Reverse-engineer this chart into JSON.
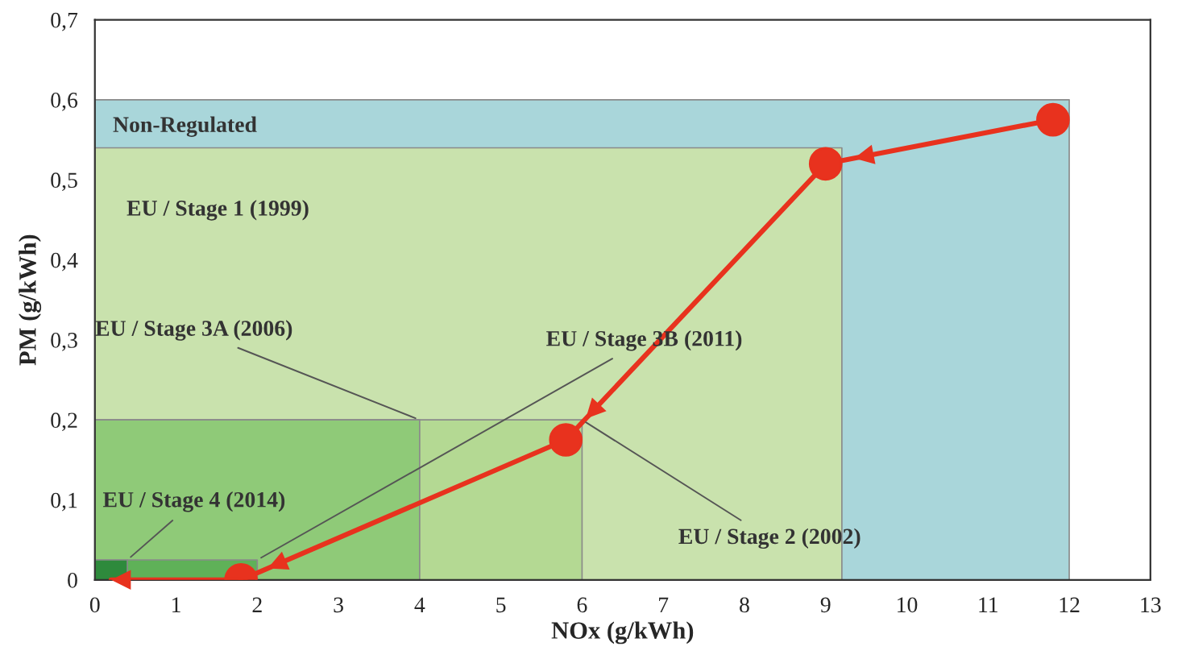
{
  "chart_data": {
    "type": "area",
    "xlabel": "NOx (g/kWh)",
    "ylabel": "PM (g/kWh)",
    "xlim": [
      0,
      13
    ],
    "xticks": [
      0,
      1,
      2,
      3,
      4,
      5,
      6,
      7,
      8,
      9,
      10,
      11,
      12,
      13
    ],
    "ylim": [
      0,
      0.7
    ],
    "yticks": [
      {
        "value": 0,
        "label": "0"
      },
      {
        "value": 0.1,
        "label": "0,1"
      },
      {
        "value": 0.2,
        "label": "0,2"
      },
      {
        "value": 0.3,
        "label": "0,3"
      },
      {
        "value": 0.4,
        "label": "0,4"
      },
      {
        "value": 0.5,
        "label": "0,5"
      },
      {
        "value": 0.6,
        "label": "0,6"
      },
      {
        "value": 0.7,
        "label": "0,7"
      }
    ],
    "grid": false,
    "series": [
      {
        "color": "#a9d6da",
        "x": [
          0,
          12
        ],
        "values": [
          0.6,
          0.6
        ]
      },
      {
        "color": "#c9e2ad",
        "x": [
          0,
          9.2
        ],
        "values": [
          0.54,
          0.54
        ]
      },
      {
        "color": "#b4d993",
        "x": [
          0,
          6
        ],
        "values": [
          0.2,
          0.2
        ]
      },
      {
        "color": "#8fca78",
        "x": [
          0,
          4
        ],
        "values": [
          0.2,
          0.2
        ]
      },
      {
        "color": "#5fb158",
        "x": [
          0,
          2
        ],
        "values": [
          0.025,
          0.025
        ]
      },
      {
        "color": "#2e8a3c",
        "x": [
          0,
          0.4
        ],
        "values": [
          0.025,
          0.025
        ]
      },
      {
        "type": "line",
        "color": "#e8321e",
        "marker": "circle",
        "x": [
          11.8,
          9.0,
          5.8,
          1.8
        ],
        "values": [
          0.575,
          0.52,
          0.175,
          0.0
        ]
      },
      {
        "type": "line",
        "color": "#e8321e",
        "marker": "none",
        "x": [
          1.8,
          0.2
        ],
        "values": [
          0.0,
          0.0
        ]
      }
    ],
    "annotations": [
      {
        "text": "Non-Regulated",
        "x": 0,
        "y": 0.6
      },
      "EU / Stage 1 (1999)",
      {
        "text": "EU / Stage 3A (2006)",
        "x": 4,
        "y": 0.2
      },
      {
        "text": "EU / Stage 3B (2011)",
        "x": 2,
        "y": 0.025
      },
      {
        "text": "EU / Stage 2 (2002)",
        "x": 6,
        "y": 0.2
      },
      {
        "text": "EU / Stage 4 (2014)",
        "x": 0.4,
        "y": 0.025
      }
    ]
  }
}
